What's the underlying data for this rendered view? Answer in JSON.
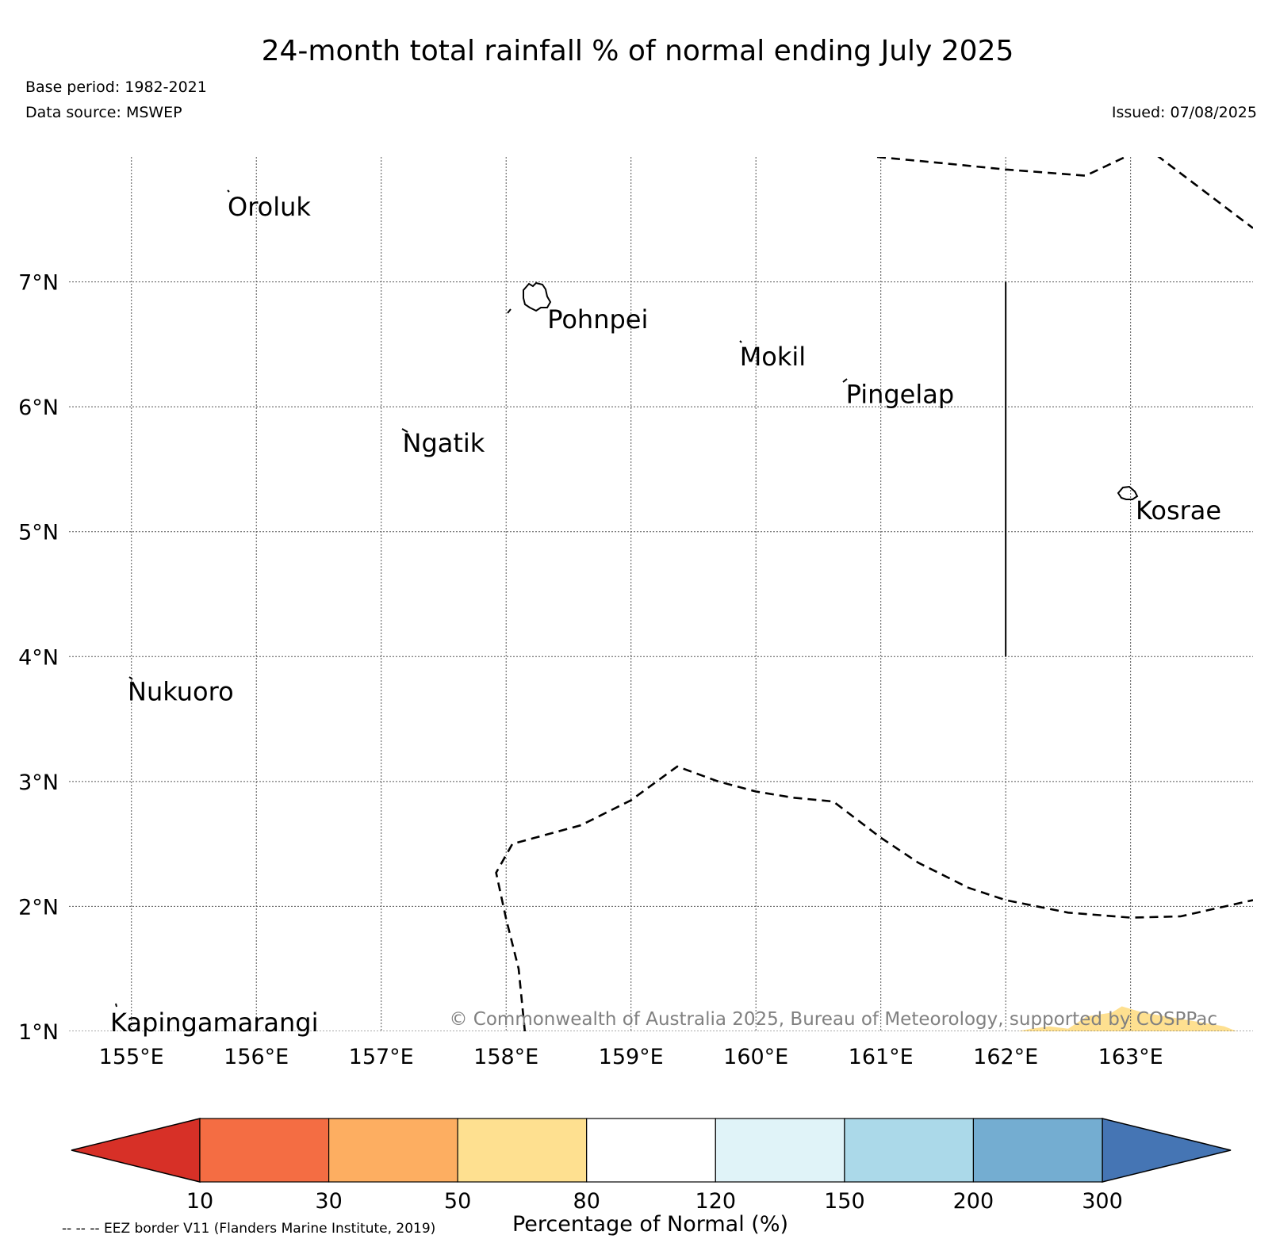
{
  "title": "24-month total rainfall % of normal ending July 2025",
  "meta": {
    "base_period": "Base period: 1982-2021",
    "data_source": "Data source: MSWEP",
    "issued": "Issued: 07/08/2025"
  },
  "map": {
    "lon_range": [
      154.5,
      163.98
    ],
    "lat_range": [
      1.0,
      8.0
    ],
    "lon_ticks": [
      {
        "value": 155,
        "label": "155°E"
      },
      {
        "value": 156,
        "label": "156°E"
      },
      {
        "value": 157,
        "label": "157°E"
      },
      {
        "value": 158,
        "label": "158°E"
      },
      {
        "value": 159,
        "label": "159°E"
      },
      {
        "value": 160,
        "label": "160°E"
      },
      {
        "value": 161,
        "label": "161°E"
      },
      {
        "value": 162,
        "label": "162°E"
      },
      {
        "value": 163,
        "label": "163°E"
      }
    ],
    "lat_ticks": [
      {
        "value": 1,
        "label": "1°N"
      },
      {
        "value": 2,
        "label": "2°N"
      },
      {
        "value": 3,
        "label": "3°N"
      },
      {
        "value": 4,
        "label": "4°N"
      },
      {
        "value": 5,
        "label": "5°N"
      },
      {
        "value": 6,
        "label": "6°N"
      },
      {
        "value": 7,
        "label": "7°N"
      }
    ],
    "places": [
      {
        "name": "Oroluk",
        "lon": 155.77,
        "lat": 7.6
      },
      {
        "name": "Pohnpei",
        "lon": 158.33,
        "lat": 6.7
      },
      {
        "name": "Mokil",
        "lon": 159.87,
        "lat": 6.4
      },
      {
        "name": "Pingelap",
        "lon": 160.72,
        "lat": 6.1
      },
      {
        "name": "Ngatik",
        "lon": 157.17,
        "lat": 5.71
      },
      {
        "name": "Kosrae",
        "lon": 163.04,
        "lat": 5.17
      },
      {
        "name": "Nukuoro",
        "lon": 154.97,
        "lat": 3.72
      },
      {
        "name": "Kapingamarangi",
        "lon": 154.83,
        "lat": 1.07
      }
    ],
    "eez_north": [
      [
        160.97,
        8.0
      ],
      [
        161.5,
        7.95
      ],
      [
        162.0,
        7.9
      ],
      [
        162.64,
        7.85
      ],
      [
        163.0,
        8.02
      ],
      [
        163.2,
        8.02
      ],
      [
        163.98,
        7.43
      ]
    ],
    "eez_south": [
      [
        158.15,
        1.0
      ],
      [
        158.1,
        1.5
      ],
      [
        158.0,
        1.9
      ],
      [
        157.92,
        2.27
      ],
      [
        158.05,
        2.5
      ],
      [
        158.6,
        2.65
      ],
      [
        159.0,
        2.85
      ],
      [
        159.37,
        3.12
      ],
      [
        159.7,
        3.0
      ],
      [
        160.0,
        2.92
      ],
      [
        160.3,
        2.87
      ],
      [
        160.62,
        2.84
      ],
      [
        161.0,
        2.55
      ],
      [
        161.3,
        2.35
      ],
      [
        161.7,
        2.15
      ],
      [
        162.0,
        2.05
      ],
      [
        162.5,
        1.95
      ],
      [
        163.0,
        1.91
      ],
      [
        163.4,
        1.92
      ],
      [
        163.98,
        2.05
      ]
    ],
    "boundary_line": {
      "lon": 162.0,
      "lat_from": 4.0,
      "lat_to": 7.0
    },
    "anomaly_patch": {
      "color": "#fee090",
      "points": [
        [
          162.1,
          1.0
        ],
        [
          162.2,
          1.02
        ],
        [
          162.35,
          1.04
        ],
        [
          162.5,
          1.02
        ],
        [
          162.65,
          1.12
        ],
        [
          162.85,
          1.15
        ],
        [
          162.93,
          1.2
        ],
        [
          163.1,
          1.15
        ],
        [
          163.4,
          1.1
        ],
        [
          163.75,
          1.04
        ],
        [
          163.85,
          1.0
        ]
      ]
    }
  },
  "copyright": "© Commonwealth of Australia 2025, Bureau of Meteorology, supported by COSPPac",
  "legend_note": "-- -- -- EEZ border V11 (Flanders Marine Institute, 2019)",
  "colorbar": {
    "label": "Percentage of Normal (%)",
    "under_color": "#d73027",
    "over_color": "#4575b4",
    "boundaries": [
      "10",
      "30",
      "50",
      "80",
      "120",
      "150",
      "200",
      "300"
    ],
    "colors": [
      "#f46d43",
      "#fdae61",
      "#fee090",
      "#ffffff",
      "#e0f3f8",
      "#abd9e9",
      "#74add1"
    ]
  }
}
